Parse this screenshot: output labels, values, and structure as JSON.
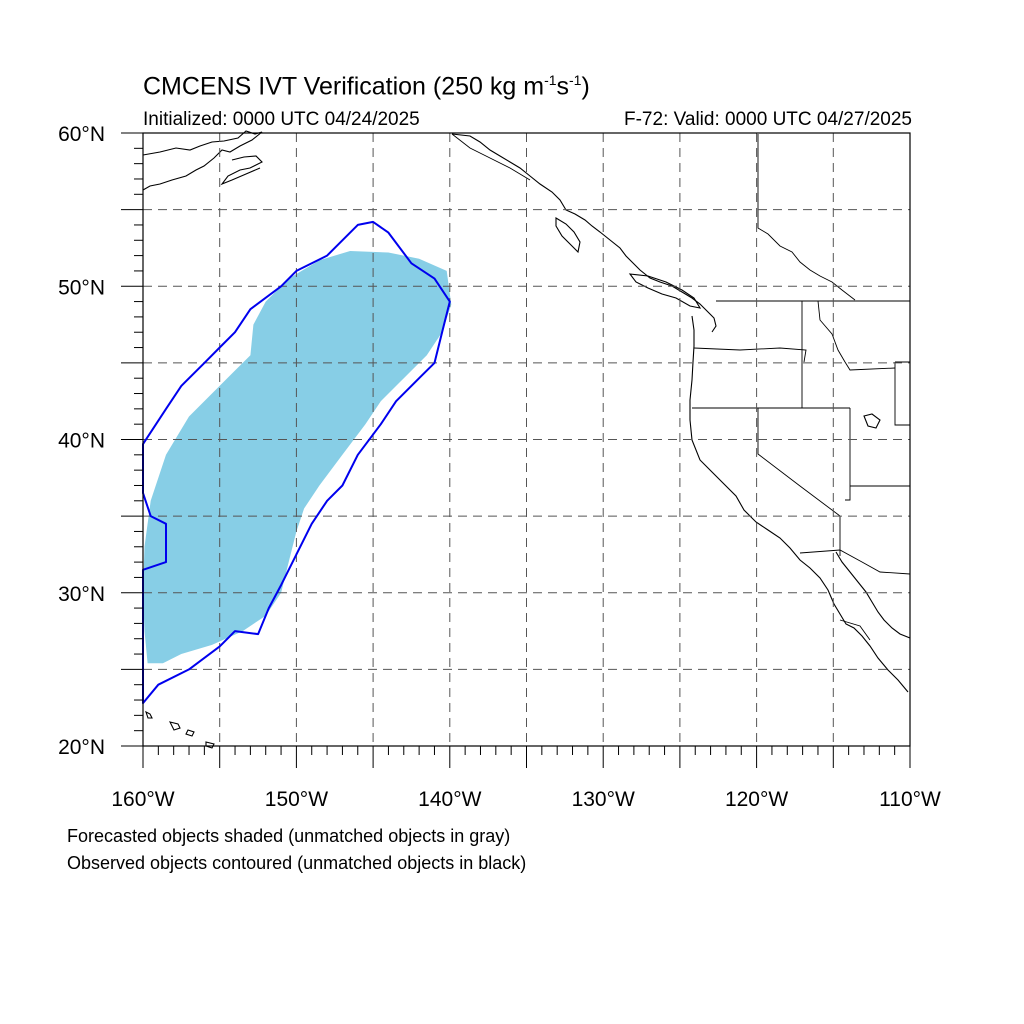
{
  "title": {
    "prefix": "CMCENS IVT Verification (250 kg m",
    "sup1": "-1",
    "mid": "s",
    "sup2": "-1",
    "suffix": ")"
  },
  "subtitle_left": "Initialized: 0000 UTC 04/24/2025",
  "subtitle_right": "F-72: Valid: 0000 UTC 04/27/2025",
  "map": {
    "lon_range": [
      -160,
      -110
    ],
    "lat_range": [
      20,
      60
    ],
    "grid_interval_deg": 5,
    "lat_labels": [
      {
        "lat": 60,
        "text": "60°N"
      },
      {
        "lat": 50,
        "text": "50°N"
      },
      {
        "lat": 40,
        "text": "40°N"
      },
      {
        "lat": 30,
        "text": "30°N"
      },
      {
        "lat": 20,
        "text": "20°N"
      }
    ],
    "lon_labels": [
      {
        "lon": -160,
        "text": "160°W"
      },
      {
        "lon": -150,
        "text": "150°W"
      },
      {
        "lon": -140,
        "text": "140°W"
      },
      {
        "lon": -130,
        "text": "130°W"
      },
      {
        "lon": -120,
        "text": "120°W"
      },
      {
        "lon": -110,
        "text": "110°W"
      }
    ],
    "forecast_fill_color": "#87CEE6",
    "observed_contour_color": "#0000EE",
    "forecast_object": [
      [
        -159.7,
        25.4
      ],
      [
        -158.7,
        25.4
      ],
      [
        -157.5,
        26.0
      ],
      [
        -155.5,
        26.6
      ],
      [
        -153.5,
        27.5
      ],
      [
        -152.0,
        28.5
      ],
      [
        -151.0,
        30.0
      ],
      [
        -150.5,
        32.0
      ],
      [
        -150.0,
        34.0
      ],
      [
        -149.5,
        35.5
      ],
      [
        -148.5,
        37.0
      ],
      [
        -147.0,
        39.0
      ],
      [
        -145.5,
        41.0
      ],
      [
        -144.5,
        42.5
      ],
      [
        -143.0,
        44.0
      ],
      [
        -141.5,
        45.5
      ],
      [
        -140.5,
        47.0
      ],
      [
        -139.9,
        48.8
      ],
      [
        -140.2,
        51.0
      ],
      [
        -142.0,
        51.8
      ],
      [
        -144.0,
        52.2
      ],
      [
        -146.5,
        52.3
      ],
      [
        -148.5,
        51.7
      ],
      [
        -150.5,
        50.5
      ],
      [
        -152.0,
        49.0
      ],
      [
        -152.8,
        47.5
      ],
      [
        -153.0,
        45.5
      ],
      [
        -154.0,
        44.5
      ],
      [
        -155.5,
        43.0
      ],
      [
        -157.0,
        41.5
      ],
      [
        -158.5,
        39.0
      ],
      [
        -159.5,
        36.0
      ],
      [
        -159.9,
        33.0
      ],
      [
        -160.0,
        30.0
      ],
      [
        -159.9,
        27.5
      ]
    ],
    "observed_object": [
      [
        -160.0,
        22.8
      ],
      [
        -159.0,
        24.0
      ],
      [
        -157.0,
        25.0
      ],
      [
        -155.0,
        26.5
      ],
      [
        -154.0,
        27.5
      ],
      [
        -152.5,
        27.3
      ],
      [
        -151.8,
        29.0
      ],
      [
        -151.0,
        30.5
      ],
      [
        -150.0,
        32.5
      ],
      [
        -149.0,
        34.5
      ],
      [
        -148.0,
        36.0
      ],
      [
        -147.0,
        37.0
      ],
      [
        -146.0,
        39.0
      ],
      [
        -144.5,
        41.0
      ],
      [
        -143.5,
        42.5
      ],
      [
        -142.0,
        44.0
      ],
      [
        -141.0,
        45.0
      ],
      [
        -140.5,
        47.0
      ],
      [
        -140.0,
        49.0
      ],
      [
        -141.0,
        50.5
      ],
      [
        -142.5,
        51.5
      ],
      [
        -144.0,
        53.5
      ],
      [
        -145.0,
        54.2
      ],
      [
        -146.0,
        54.0
      ],
      [
        -147.0,
        53.0
      ],
      [
        -148.0,
        52.0
      ],
      [
        -150.0,
        51.0
      ],
      [
        -151.0,
        50.0
      ],
      [
        -153.0,
        48.5
      ],
      [
        -154.0,
        47.0
      ],
      [
        -155.0,
        46.0
      ],
      [
        -156.0,
        45.0
      ],
      [
        -157.5,
        43.5
      ],
      [
        -158.5,
        42.0
      ],
      [
        -160.0,
        39.7
      ],
      [
        -160.0,
        36.5
      ],
      [
        -159.5,
        35.0
      ],
      [
        -158.5,
        34.5
      ],
      [
        -158.5,
        32.0
      ],
      [
        -160.0,
        31.5
      ]
    ]
  },
  "notes": [
    "Forecasted objects shaded (unmatched objects in gray)",
    "Observed objects contoured (unmatched objects in black)"
  ]
}
